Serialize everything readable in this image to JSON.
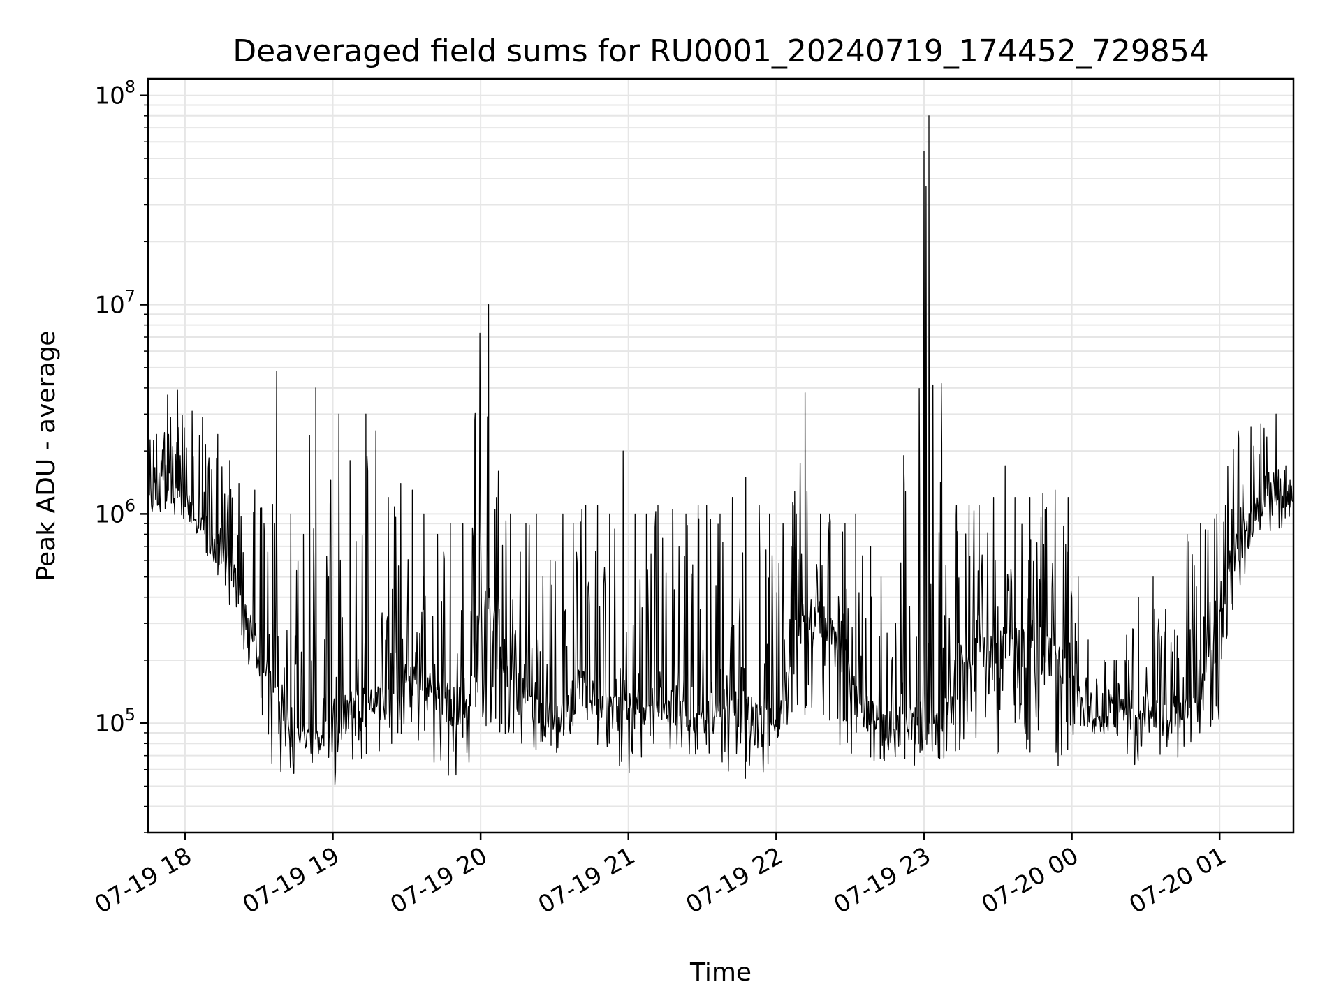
{
  "chart_data": {
    "type": "line",
    "title": "Deaveraged field sums for RU0001_20240719_174452_729854",
    "xlabel": "Time",
    "ylabel": "Peak ADU - average",
    "y_scale": "log",
    "grid": true,
    "x_range": [
      "2024-07-19T17:45:00",
      "2024-07-20T01:30:00"
    ],
    "ylim": [
      30000,
      120000000
    ],
    "x_ticks": [
      {
        "value": "2024-07-19T18:00:00",
        "label": "07-19 18"
      },
      {
        "value": "2024-07-19T19:00:00",
        "label": "07-19 19"
      },
      {
        "value": "2024-07-19T20:00:00",
        "label": "07-19 20"
      },
      {
        "value": "2024-07-19T21:00:00",
        "label": "07-19 21"
      },
      {
        "value": "2024-07-19T22:00:00",
        "label": "07-19 22"
      },
      {
        "value": "2024-07-19T23:00:00",
        "label": "07-19 23"
      },
      {
        "value": "2024-07-20T00:00:00",
        "label": "07-20 00"
      },
      {
        "value": "2024-07-20T01:00:00",
        "label": "07-20 01"
      }
    ],
    "y_ticks": [
      {
        "value": 100000,
        "base": "10",
        "exp": "5"
      },
      {
        "value": 1000000,
        "base": "10",
        "exp": "6"
      },
      {
        "value": 10000000,
        "base": "10",
        "exp": "7"
      },
      {
        "value": 100000000,
        "base": "10",
        "exp": "8"
      }
    ],
    "series": [
      {
        "color": "#000000",
        "x": [
          "2024-07-19T17:45:00",
          "2024-07-19T17:50:00",
          "2024-07-19T17:55:00",
          "2024-07-19T18:00:00",
          "2024-07-19T18:05:00",
          "2024-07-19T18:10:00",
          "2024-07-19T18:15:00",
          "2024-07-19T18:20:00",
          "2024-07-19T18:25:00",
          "2024-07-19T18:30:00",
          "2024-07-19T18:35:00",
          "2024-07-19T18:40:00",
          "2024-07-19T18:45:00",
          "2024-07-19T18:50:00",
          "2024-07-19T18:55:00",
          "2024-07-19T19:00:00",
          "2024-07-19T19:05:00",
          "2024-07-19T19:10:00",
          "2024-07-19T19:15:00",
          "2024-07-19T19:20:00",
          "2024-07-19T19:25:00",
          "2024-07-19T19:30:00",
          "2024-07-19T19:35:00",
          "2024-07-19T19:40:00",
          "2024-07-19T19:45:00",
          "2024-07-19T19:50:00",
          "2024-07-19T19:55:00",
          "2024-07-19T20:00:00",
          "2024-07-19T20:05:00",
          "2024-07-19T20:10:00",
          "2024-07-19T20:15:00",
          "2024-07-19T20:20:00",
          "2024-07-19T20:25:00",
          "2024-07-19T20:30:00",
          "2024-07-19T20:35:00",
          "2024-07-19T20:40:00",
          "2024-07-19T20:45:00",
          "2024-07-19T20:50:00",
          "2024-07-19T20:55:00",
          "2024-07-19T21:00:00",
          "2024-07-19T21:05:00",
          "2024-07-19T21:10:00",
          "2024-07-19T21:15:00",
          "2024-07-19T21:20:00",
          "2024-07-19T21:25:00",
          "2024-07-19T21:30:00",
          "2024-07-19T21:35:00",
          "2024-07-19T21:40:00",
          "2024-07-19T21:45:00",
          "2024-07-19T21:50:00",
          "2024-07-19T21:55:00",
          "2024-07-19T22:00:00",
          "2024-07-19T22:05:00",
          "2024-07-19T22:10:00",
          "2024-07-19T22:15:00",
          "2024-07-19T22:20:00",
          "2024-07-19T22:25:00",
          "2024-07-19T22:30:00",
          "2024-07-19T22:35:00",
          "2024-07-19T22:40:00",
          "2024-07-19T22:45:00",
          "2024-07-19T22:50:00",
          "2024-07-19T22:55:00",
          "2024-07-19T23:00:00",
          "2024-07-19T23:05:00",
          "2024-07-19T23:10:00",
          "2024-07-19T23:15:00",
          "2024-07-19T23:20:00",
          "2024-07-19T23:25:00",
          "2024-07-19T23:30:00",
          "2024-07-19T23:35:00",
          "2024-07-19T23:40:00",
          "2024-07-19T23:45:00",
          "2024-07-19T23:50:00",
          "2024-07-19T23:55:00",
          "2024-07-20T00:00:00",
          "2024-07-20T00:05:00",
          "2024-07-20T00:10:00",
          "2024-07-20T00:15:00",
          "2024-07-20T00:20:00",
          "2024-07-20T00:25:00",
          "2024-07-20T00:30:00",
          "2024-07-20T00:35:00",
          "2024-07-20T00:40:00",
          "2024-07-20T00:45:00",
          "2024-07-20T00:50:00",
          "2024-07-20T00:55:00",
          "2024-07-20T01:00:00",
          "2024-07-20T01:05:00",
          "2024-07-20T01:10:00",
          "2024-07-20T01:15:00",
          "2024-07-20T01:20:00",
          "2024-07-20T01:25:00",
          "2024-07-20T01:30:00"
        ],
        "baseline": [
          1100000,
          1300000,
          1300000,
          1100000,
          950000,
          800000,
          600000,
          500000,
          300000,
          200000,
          150000,
          110000,
          90000,
          90000,
          85000,
          90000,
          110000,
          120000,
          120000,
          130000,
          150000,
          160000,
          150000,
          140000,
          130000,
          120000,
          120000,
          400000,
          350000,
          200000,
          150000,
          130000,
          110000,
          100000,
          110000,
          150000,
          130000,
          120000,
          115000,
          110000,
          120000,
          130000,
          130000,
          120000,
          110000,
          110000,
          115000,
          120000,
          120000,
          110000,
          100000,
          100000,
          150000,
          300000,
          350000,
          300000,
          250000,
          150000,
          110000,
          100000,
          95000,
          95000,
          100000,
          100000,
          95000,
          130000,
          200000,
          220000,
          220000,
          220000,
          230000,
          230000,
          220000,
          210000,
          200000,
          150000,
          120000,
          110000,
          110000,
          110000,
          110000,
          110000,
          105000,
          100000,
          110000,
          130000,
          200000,
          300000,
          600000,
          800000,
          1000000,
          1100000,
          1100000,
          1100000
        ],
        "lows": [
          900000,
          950000,
          1000000,
          900000,
          800000,
          600000,
          450000,
          300000,
          180000,
          90000,
          60000,
          55000,
          55000,
          50000,
          55000,
          45000,
          60000,
          65000,
          65000,
          70000,
          75000,
          85000,
          80000,
          65000,
          50000,
          55000,
          60000,
          80000,
          90000,
          85000,
          75000,
          75000,
          70000,
          70000,
          70000,
          75000,
          75000,
          75000,
          60000,
          50000,
          65000,
          75000,
          70000,
          70000,
          70000,
          70000,
          70000,
          55000,
          45000,
          60000,
          55000,
          70000,
          75000,
          80000,
          85000,
          80000,
          80000,
          70000,
          60000,
          65000,
          65000,
          65000,
          60000,
          70000,
          65000,
          70000,
          75000,
          75000,
          60000,
          70000,
          65000,
          70000,
          65000,
          65000,
          60000,
          80000,
          85000,
          90000,
          85000,
          80000,
          60000,
          75000,
          70000,
          65000,
          70000,
          80000,
          85000,
          90000,
          300000,
          500000,
          700000,
          800000,
          850000,
          900000
        ],
        "highs": [
          2400000,
          3700000,
          3900000,
          3100000,
          2900000,
          2400000,
          1800000,
          1400000,
          1300000,
          900000,
          4800000,
          1000000,
          800000,
          4000000,
          500000,
          3000000,
          1800000,
          3000000,
          2500000,
          1200000,
          1400000,
          1300000,
          1000000,
          800000,
          900000,
          900000,
          2800000,
          10000000,
          1600000,
          1000000,
          900000,
          1000000,
          600000,
          1000000,
          900000,
          1100000,
          1100000,
          1000000,
          2000000,
          1000000,
          1000000,
          1100000,
          1050000,
          1000000,
          1100000,
          1100000,
          1000000,
          1200000,
          1500000,
          1100000,
          1000000,
          900000,
          1000000,
          3800000,
          1000000,
          1000000,
          900000,
          1000000,
          700000,
          500000,
          300000,
          1900000,
          1200000,
          80000000,
          4200000,
          1100000,
          1100000,
          1100000,
          1200000,
          1700000,
          1200000,
          1200000,
          1250000,
          1300000,
          1200000,
          500000,
          250000,
          200000,
          200000,
          200000,
          400000,
          500000,
          350000,
          280000,
          800000,
          900000,
          950000,
          1100000,
          2500000,
          2600000,
          2700000,
          3000000,
          1700000,
          1500000
        ]
      }
    ]
  }
}
